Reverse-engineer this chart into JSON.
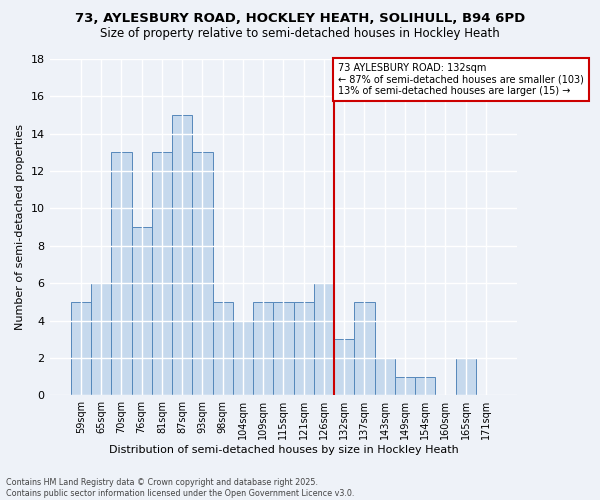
{
  "title": "73, AYLESBURY ROAD, HOCKLEY HEATH, SOLIHULL, B94 6PD",
  "subtitle": "Size of property relative to semi-detached houses in Hockley Heath",
  "xlabel": "Distribution of semi-detached houses by size in Hockley Heath",
  "ylabel": "Number of semi-detached properties",
  "footnote1": "Contains HM Land Registry data © Crown copyright and database right 2025.",
  "footnote2": "Contains public sector information licensed under the Open Government Licence v3.0.",
  "bar_labels": [
    "59sqm",
    "65sqm",
    "70sqm",
    "76sqm",
    "81sqm",
    "87sqm",
    "93sqm",
    "98sqm",
    "104sqm",
    "109sqm",
    "115sqm",
    "121sqm",
    "126sqm",
    "132sqm",
    "137sqm",
    "143sqm",
    "149sqm",
    "154sqm",
    "160sqm",
    "165sqm",
    "171sqm"
  ],
  "bar_values": [
    5,
    6,
    13,
    9,
    13,
    15,
    13,
    5,
    4,
    5,
    5,
    5,
    6,
    3,
    5,
    2,
    1,
    1,
    0,
    2,
    0
  ],
  "bar_color": "#c6d9ed",
  "bar_edge_color": "#5588bb",
  "background_color": "#eef2f8",
  "grid_color": "#ffffff",
  "ylim": [
    0,
    18
  ],
  "yticks": [
    0,
    2,
    4,
    6,
    8,
    10,
    12,
    14,
    16,
    18
  ],
  "vline_x_idx": 12,
  "vline_color": "#cc0000",
  "annotation_text": "73 AYLESBURY ROAD: 132sqm\n← 87% of semi-detached houses are smaller (103)\n13% of semi-detached houses are larger (15) →",
  "annotation_box_edge": "#cc0000",
  "annotation_box_face": "white"
}
